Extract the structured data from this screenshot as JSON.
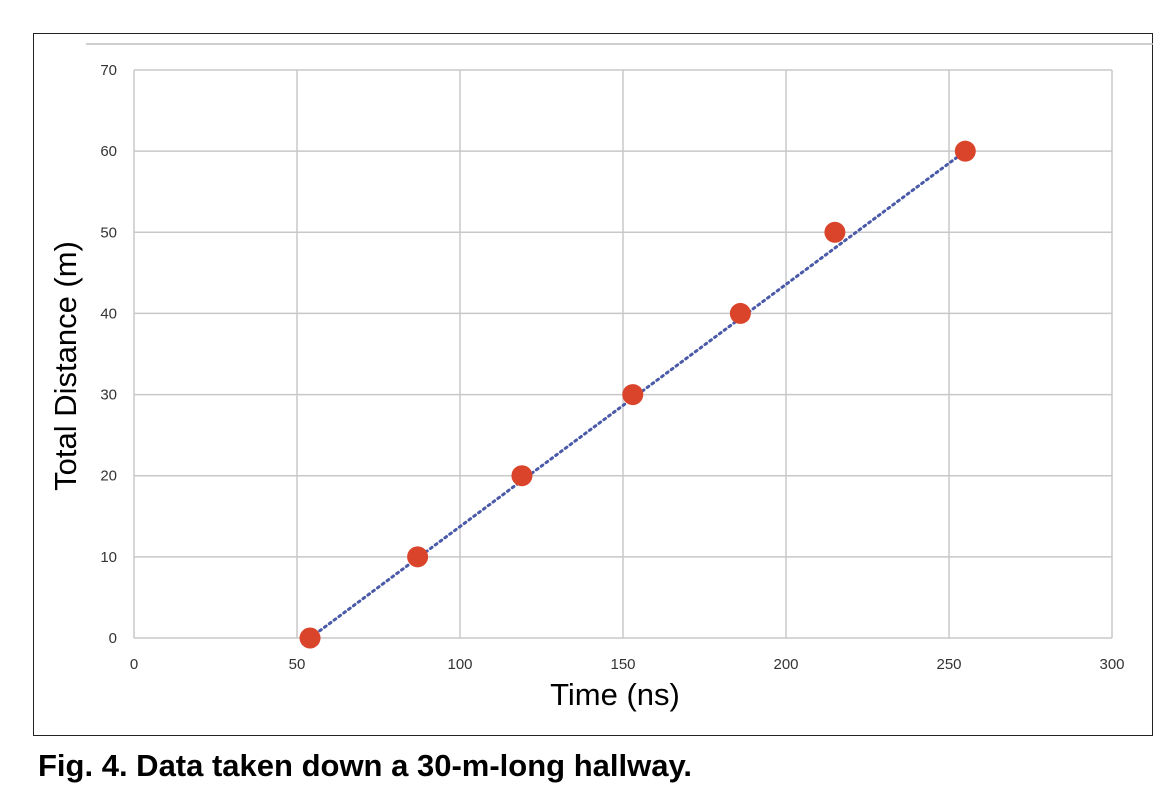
{
  "caption": "Fig. 4. Data taken down a 30-m-long hallway.",
  "chart_data": {
    "type": "scatter",
    "title": "",
    "xlabel": "Time (ns)",
    "ylabel": "Total Distance (m)",
    "xlim": [
      0,
      300
    ],
    "ylim": [
      0,
      70
    ],
    "xticks": [
      "0",
      "50",
      "100",
      "150",
      "200",
      "250",
      "300"
    ],
    "yticks": [
      "0",
      "10",
      "20",
      "30",
      "40",
      "50",
      "60",
      "70"
    ],
    "grid": true,
    "legend": "none",
    "series": [
      {
        "x": [
          54,
          87,
          119,
          153,
          186,
          215,
          255
        ],
        "y": [
          0,
          10,
          20,
          30,
          40,
          50,
          60
        ],
        "color": "#d9442a"
      }
    ],
    "trendline": {
      "style": "dotted",
      "color": "#4a5aa8",
      "x": [
        54,
        255
      ],
      "y": [
        0,
        60
      ]
    }
  }
}
